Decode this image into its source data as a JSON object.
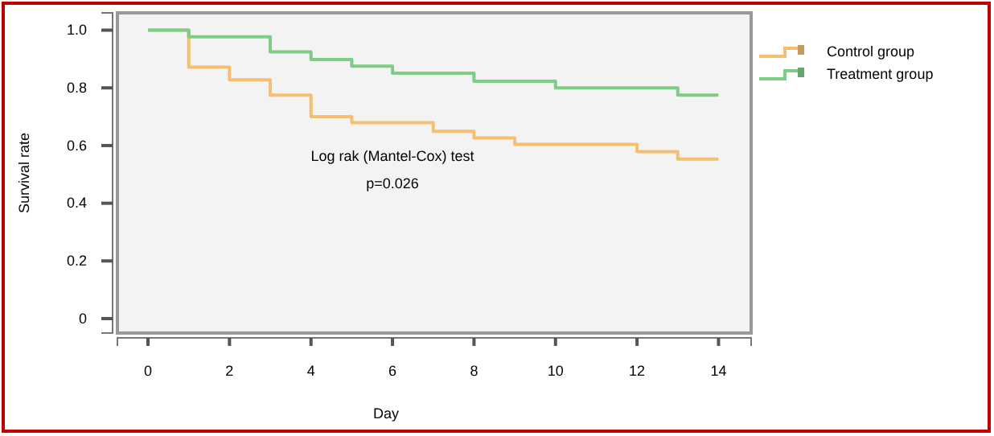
{
  "chart_data": {
    "type": "step",
    "xlabel": "Day",
    "ylabel": "Survival rate",
    "xlim": [
      -0.75,
      14.8
    ],
    "ylim": [
      -0.05,
      1.06
    ],
    "xticks": [
      0,
      2,
      4,
      6,
      8,
      10,
      12,
      14
    ],
    "yticks": [
      0,
      0.2,
      0.4,
      0.6,
      0.8,
      {
        "value": 1,
        "label": "1.0"
      }
    ],
    "legend": "top right",
    "grid": false,
    "annotations": [
      "Log rak (Mantel-Cox) test",
      "p=0.026"
    ],
    "series": [
      {
        "name": "Control group",
        "color": "#f5bf72",
        "x": [
          0,
          1,
          2,
          3,
          4,
          5,
          7,
          8,
          9,
          12,
          13,
          14
        ],
        "values": [
          1,
          0.872,
          0.828,
          0.775,
          0.7,
          0.679,
          0.649,
          0.626,
          0.604,
          0.579,
          0.553,
          0.553
        ]
      },
      {
        "name": "Treatment group",
        "color": "#7fcc85",
        "x": [
          0,
          1,
          3,
          4,
          5,
          6,
          8,
          10,
          13,
          14
        ],
        "values": [
          1,
          0.977,
          0.925,
          0.898,
          0.875,
          0.851,
          0.823,
          0.8,
          0.775,
          0.775
        ]
      }
    ]
  }
}
